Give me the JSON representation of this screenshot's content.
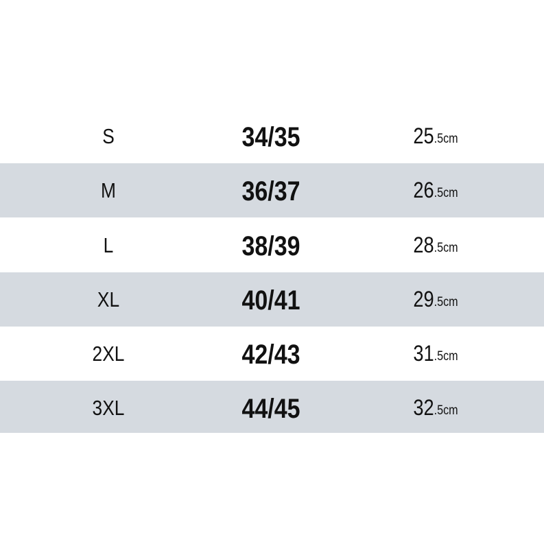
{
  "rows": [
    {
      "size": "S",
      "eu": "34/35",
      "length": "25",
      "length_unit": ".5cm",
      "shaded": false
    },
    {
      "size": "M",
      "eu": "36/37",
      "length": "26",
      "length_unit": ".5cm",
      "shaded": true
    },
    {
      "size": "L",
      "eu": "38/39",
      "length": "28",
      "length_unit": ".5cm",
      "shaded": false
    },
    {
      "size": "XL",
      "eu": "40/41",
      "length": "29",
      "length_unit": ".5cm",
      "shaded": true
    },
    {
      "size": "2XL",
      "eu": "42/43",
      "length": "31",
      "length_unit": ".5cm",
      "shaded": false
    },
    {
      "size": "3XL",
      "eu": "44/45",
      "length": "32",
      "length_unit": ".5cm",
      "shaded": true
    }
  ],
  "colors": {
    "stripe": "#d5dae0",
    "text": "#111111"
  }
}
